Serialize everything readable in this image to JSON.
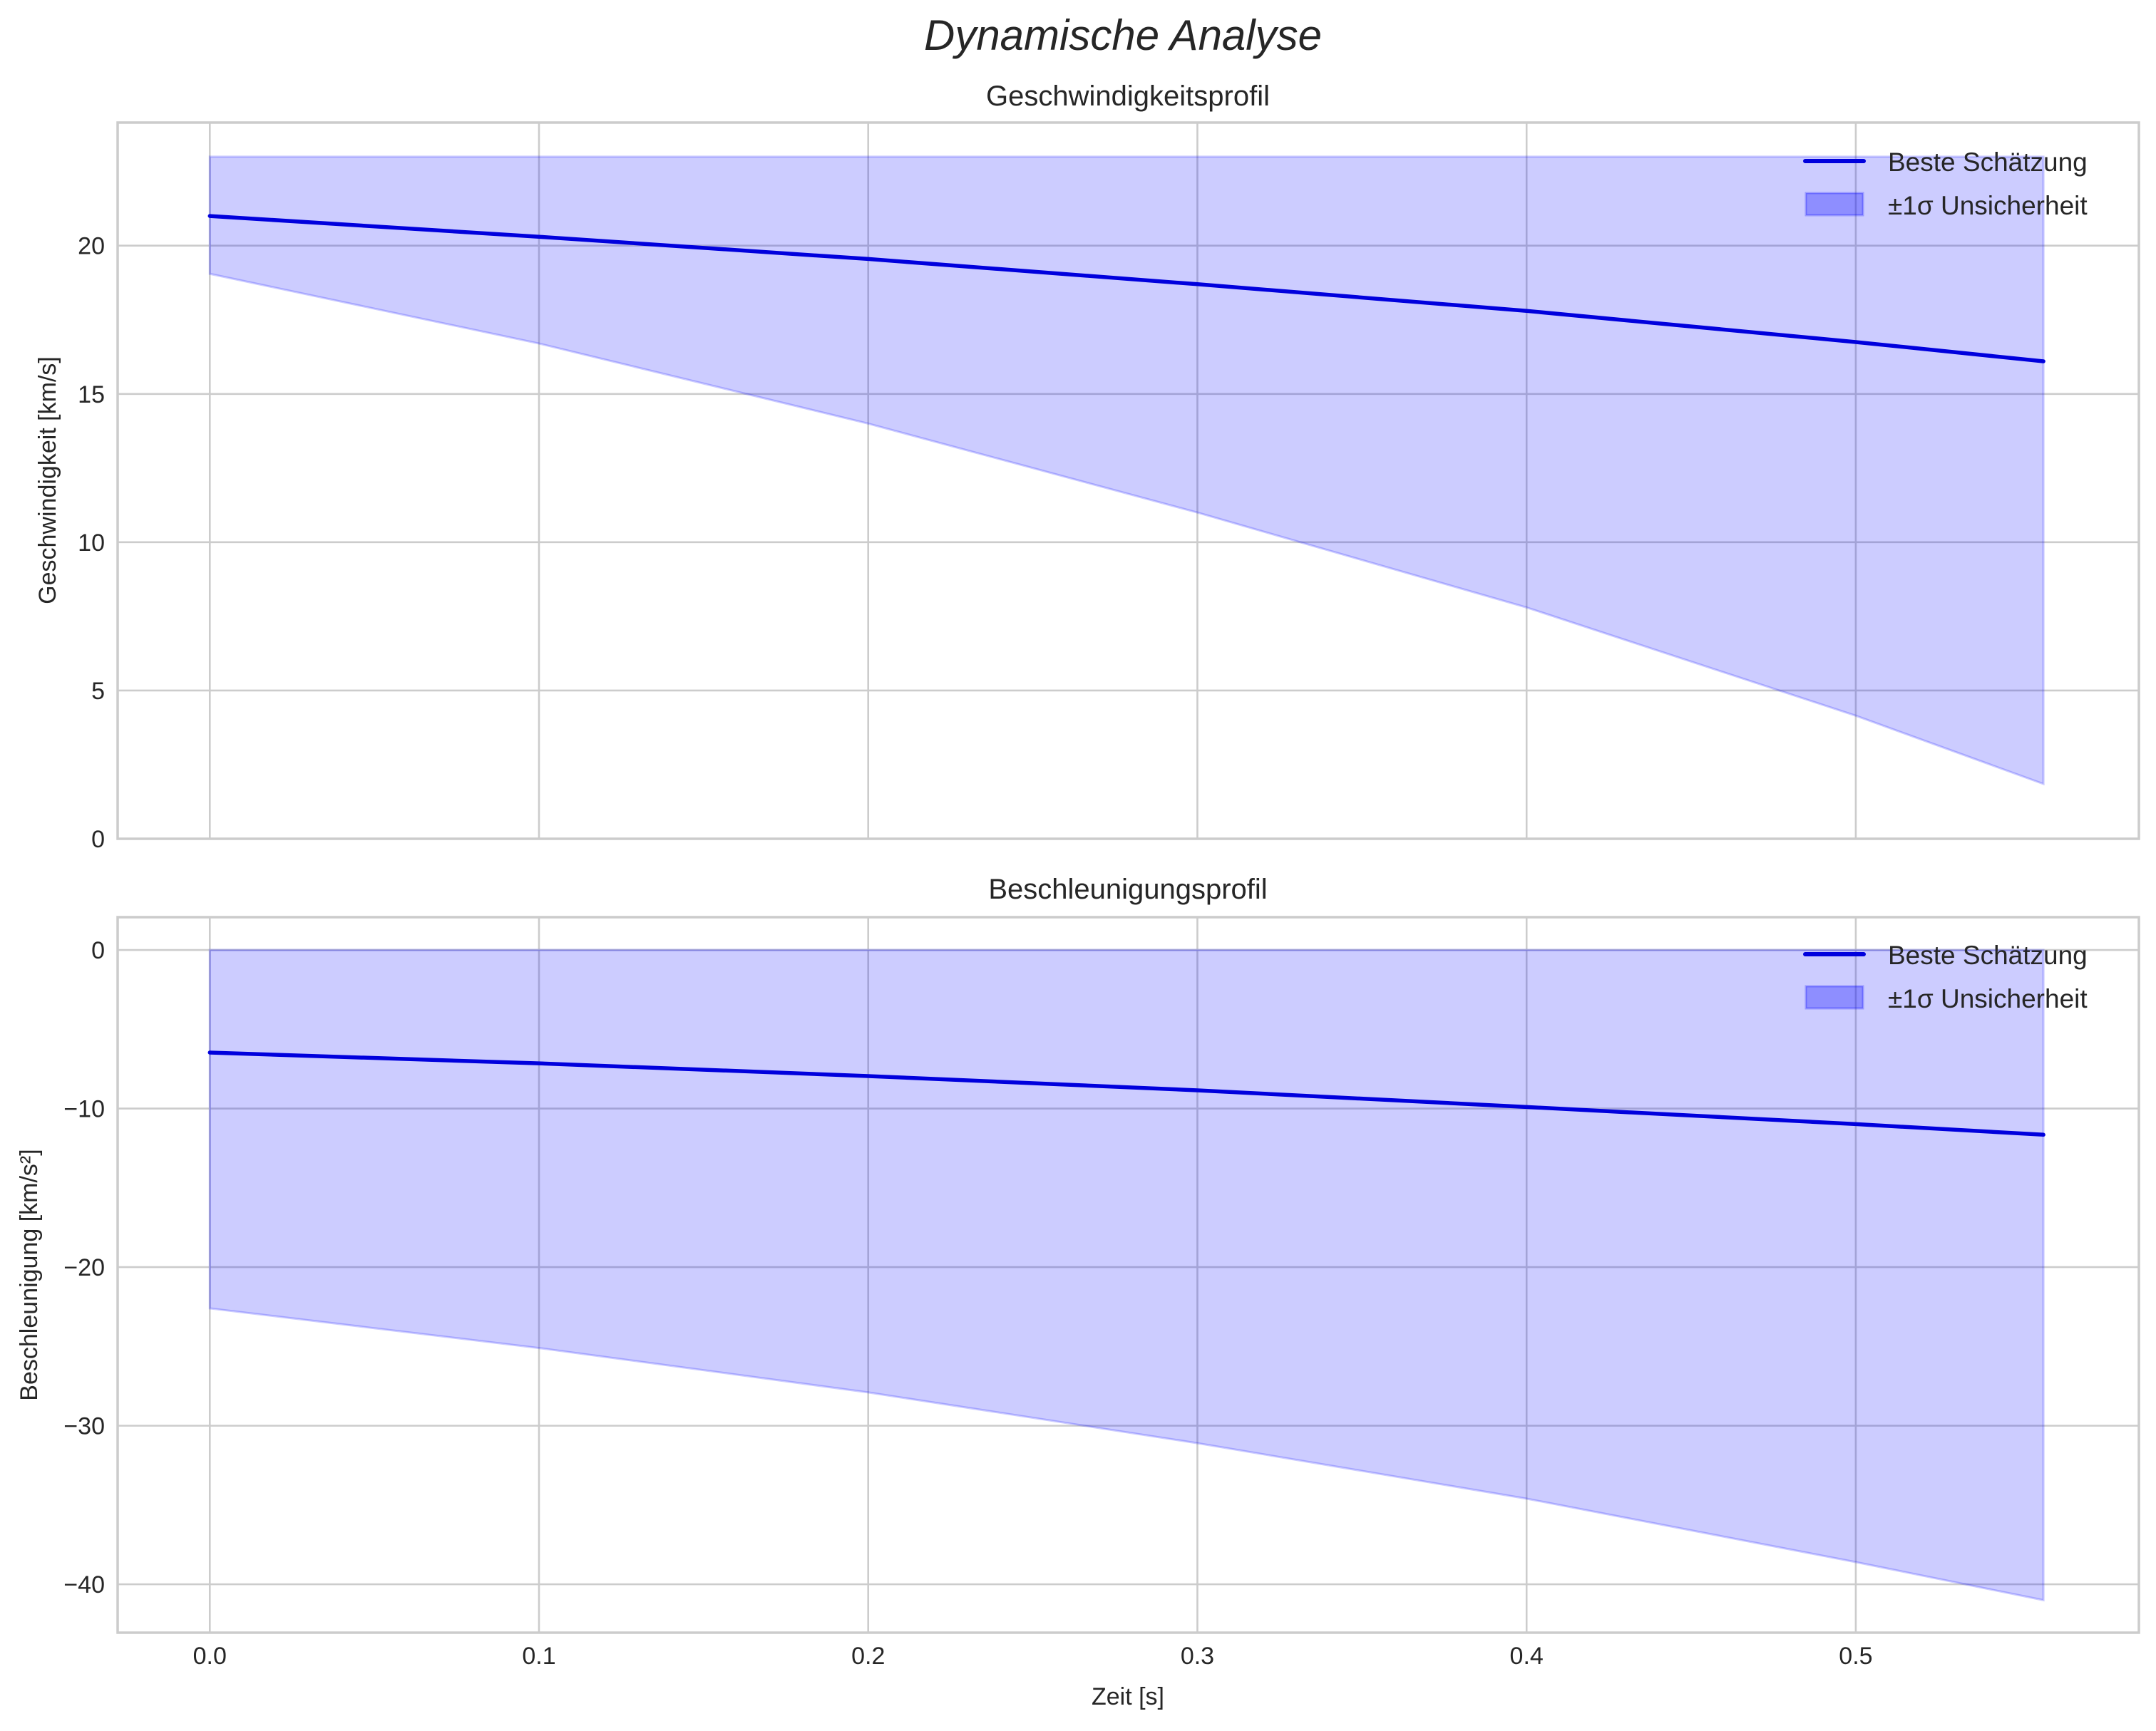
{
  "figure": {
    "suptitle": "Dynamische Analyse",
    "xlabel": "Zeit [s]",
    "legend": {
      "line_label": "Beste Schätzung",
      "band_label": "±1σ Unsicherheit"
    },
    "colors": {
      "line": "#0000dd",
      "band_fill": "#0000ff",
      "band_alpha": 0.2,
      "grid": "#cccccc",
      "text": "#262626"
    }
  },
  "chart_data": [
    {
      "type": "line",
      "title": "Geschwindigkeitsprofil",
      "xlabel": "",
      "ylabel": "Geschwindigkeit [km/s]",
      "x": [
        0.0,
        0.1,
        0.2,
        0.3,
        0.4,
        0.5,
        0.557
      ],
      "series": [
        {
          "name": "Beste Schätzung",
          "values": [
            21.0,
            20.3,
            19.55,
            18.7,
            17.8,
            16.75,
            16.1
          ]
        },
        {
          "name": "±1σ Unsicherheit (upper)",
          "values": [
            23.0,
            23.0,
            23.0,
            23.0,
            23.0,
            23.0,
            23.0
          ]
        },
        {
          "name": "±1σ Unsicherheit (lower)",
          "values": [
            19.05,
            16.7,
            14.0,
            11.0,
            7.8,
            4.15,
            1.85
          ]
        }
      ],
      "xticks": [
        "0.0",
        "0.1",
        "0.2",
        "0.3",
        "0.4",
        "0.5"
      ],
      "yticks": [
        "0",
        "5",
        "10",
        "15",
        "20"
      ],
      "xlim": [
        -0.028,
        0.586
      ],
      "ylim": [
        0,
        24.15
      ],
      "grid": true,
      "legend_position": "upper right"
    },
    {
      "type": "line",
      "title": "Beschleunigungsprofil",
      "xlabel": "Zeit [s]",
      "ylabel": "Beschleunigung [km/s²]",
      "x": [
        0.0,
        0.1,
        0.2,
        0.3,
        0.4,
        0.5,
        0.557
      ],
      "series": [
        {
          "name": "Beste Schätzung",
          "values": [
            -6.47,
            -7.15,
            -7.95,
            -8.85,
            -9.9,
            -10.98,
            -11.65
          ]
        },
        {
          "name": "±1σ Unsicherheit (upper)",
          "values": [
            0,
            0,
            0,
            0,
            0,
            0,
            0
          ]
        },
        {
          "name": "±1σ Unsicherheit (lower)",
          "values": [
            -22.6,
            -25.1,
            -27.9,
            -31.1,
            -34.6,
            -38.6,
            -41.0
          ]
        }
      ],
      "xticks": [
        "0.0",
        "0.1",
        "0.2",
        "0.3",
        "0.4",
        "0.5"
      ],
      "yticks": [
        "0",
        "−10",
        "−20",
        "−30",
        "−40"
      ],
      "xlim": [
        -0.028,
        0.586
      ],
      "ylim": [
        -43.05,
        2.07
      ],
      "grid": true,
      "legend_position": "upper right"
    }
  ]
}
